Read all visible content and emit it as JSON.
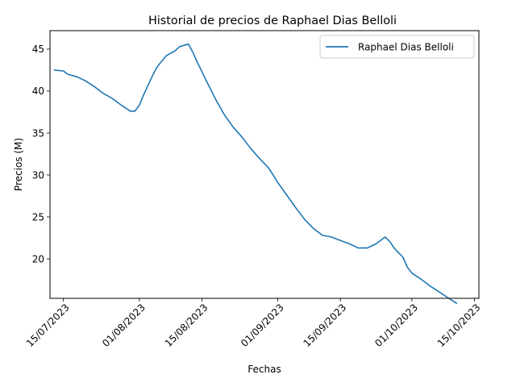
{
  "chart_data": {
    "type": "line",
    "title": "Historial de precios de Raphael Dias Belloli",
    "xlabel": "Fechas",
    "ylabel": "Precios (M)",
    "xlim": [
      "2023-07-12",
      "2023-10-16"
    ],
    "ylim": [
      15.3,
      47.2
    ],
    "x_ticks": [
      "2023-07-15",
      "2023-08-01",
      "2023-08-15",
      "2023-09-01",
      "2023-09-15",
      "2023-10-01",
      "2023-10-15"
    ],
    "x_tick_labels": [
      "15/07/2023",
      "01/08/2023",
      "15/08/2023",
      "01/09/2023",
      "15/09/2023",
      "01/10/2023",
      "15/10/2023"
    ],
    "y_ticks": [
      20,
      25,
      30,
      35,
      40,
      45
    ],
    "y_tick_labels": [
      "20",
      "25",
      "30",
      "35",
      "40",
      "45"
    ],
    "grid": false,
    "legend": {
      "position": "upper-right"
    },
    "series": [
      {
        "name": "Raphael Dias Belloli",
        "color": "#1f77b4",
        "x": [
          "2023-07-13",
          "2023-07-15",
          "2023-07-16",
          "2023-07-18",
          "2023-07-20",
          "2023-07-22",
          "2023-07-24",
          "2023-07-26",
          "2023-07-28",
          "2023-07-30",
          "2023-07-31",
          "2023-08-01",
          "2023-08-02",
          "2023-08-04",
          "2023-08-05",
          "2023-08-07",
          "2023-08-09",
          "2023-08-10",
          "2023-08-12",
          "2023-08-13",
          "2023-08-14",
          "2023-08-16",
          "2023-08-18",
          "2023-08-20",
          "2023-08-22",
          "2023-08-24",
          "2023-08-26",
          "2023-08-28",
          "2023-08-30",
          "2023-09-01",
          "2023-09-03",
          "2023-09-05",
          "2023-09-07",
          "2023-09-09",
          "2023-09-11",
          "2023-09-13",
          "2023-09-15",
          "2023-09-17",
          "2023-09-19",
          "2023-09-21",
          "2023-09-23",
          "2023-09-25",
          "2023-09-26",
          "2023-09-27",
          "2023-09-29",
          "2023-09-30",
          "2023-10-01",
          "2023-10-03",
          "2023-10-05",
          "2023-10-07",
          "2023-10-09",
          "2023-10-11"
        ],
        "values": [
          42.5,
          42.4,
          42.0,
          41.7,
          41.2,
          40.5,
          39.7,
          39.1,
          38.3,
          37.6,
          37.6,
          38.3,
          39.6,
          41.9,
          42.9,
          44.2,
          44.8,
          45.3,
          45.6,
          44.6,
          43.4,
          41.2,
          39.1,
          37.2,
          35.7,
          34.5,
          33.1,
          31.9,
          30.8,
          29.1,
          27.6,
          26.1,
          24.7,
          23.6,
          22.8,
          22.6,
          22.2,
          21.8,
          21.3,
          21.3,
          21.8,
          22.6,
          22.1,
          21.3,
          20.2,
          19.0,
          18.3,
          17.6,
          16.8,
          16.1,
          15.4,
          14.7
        ],
        "values_note": ""
      }
    ]
  }
}
